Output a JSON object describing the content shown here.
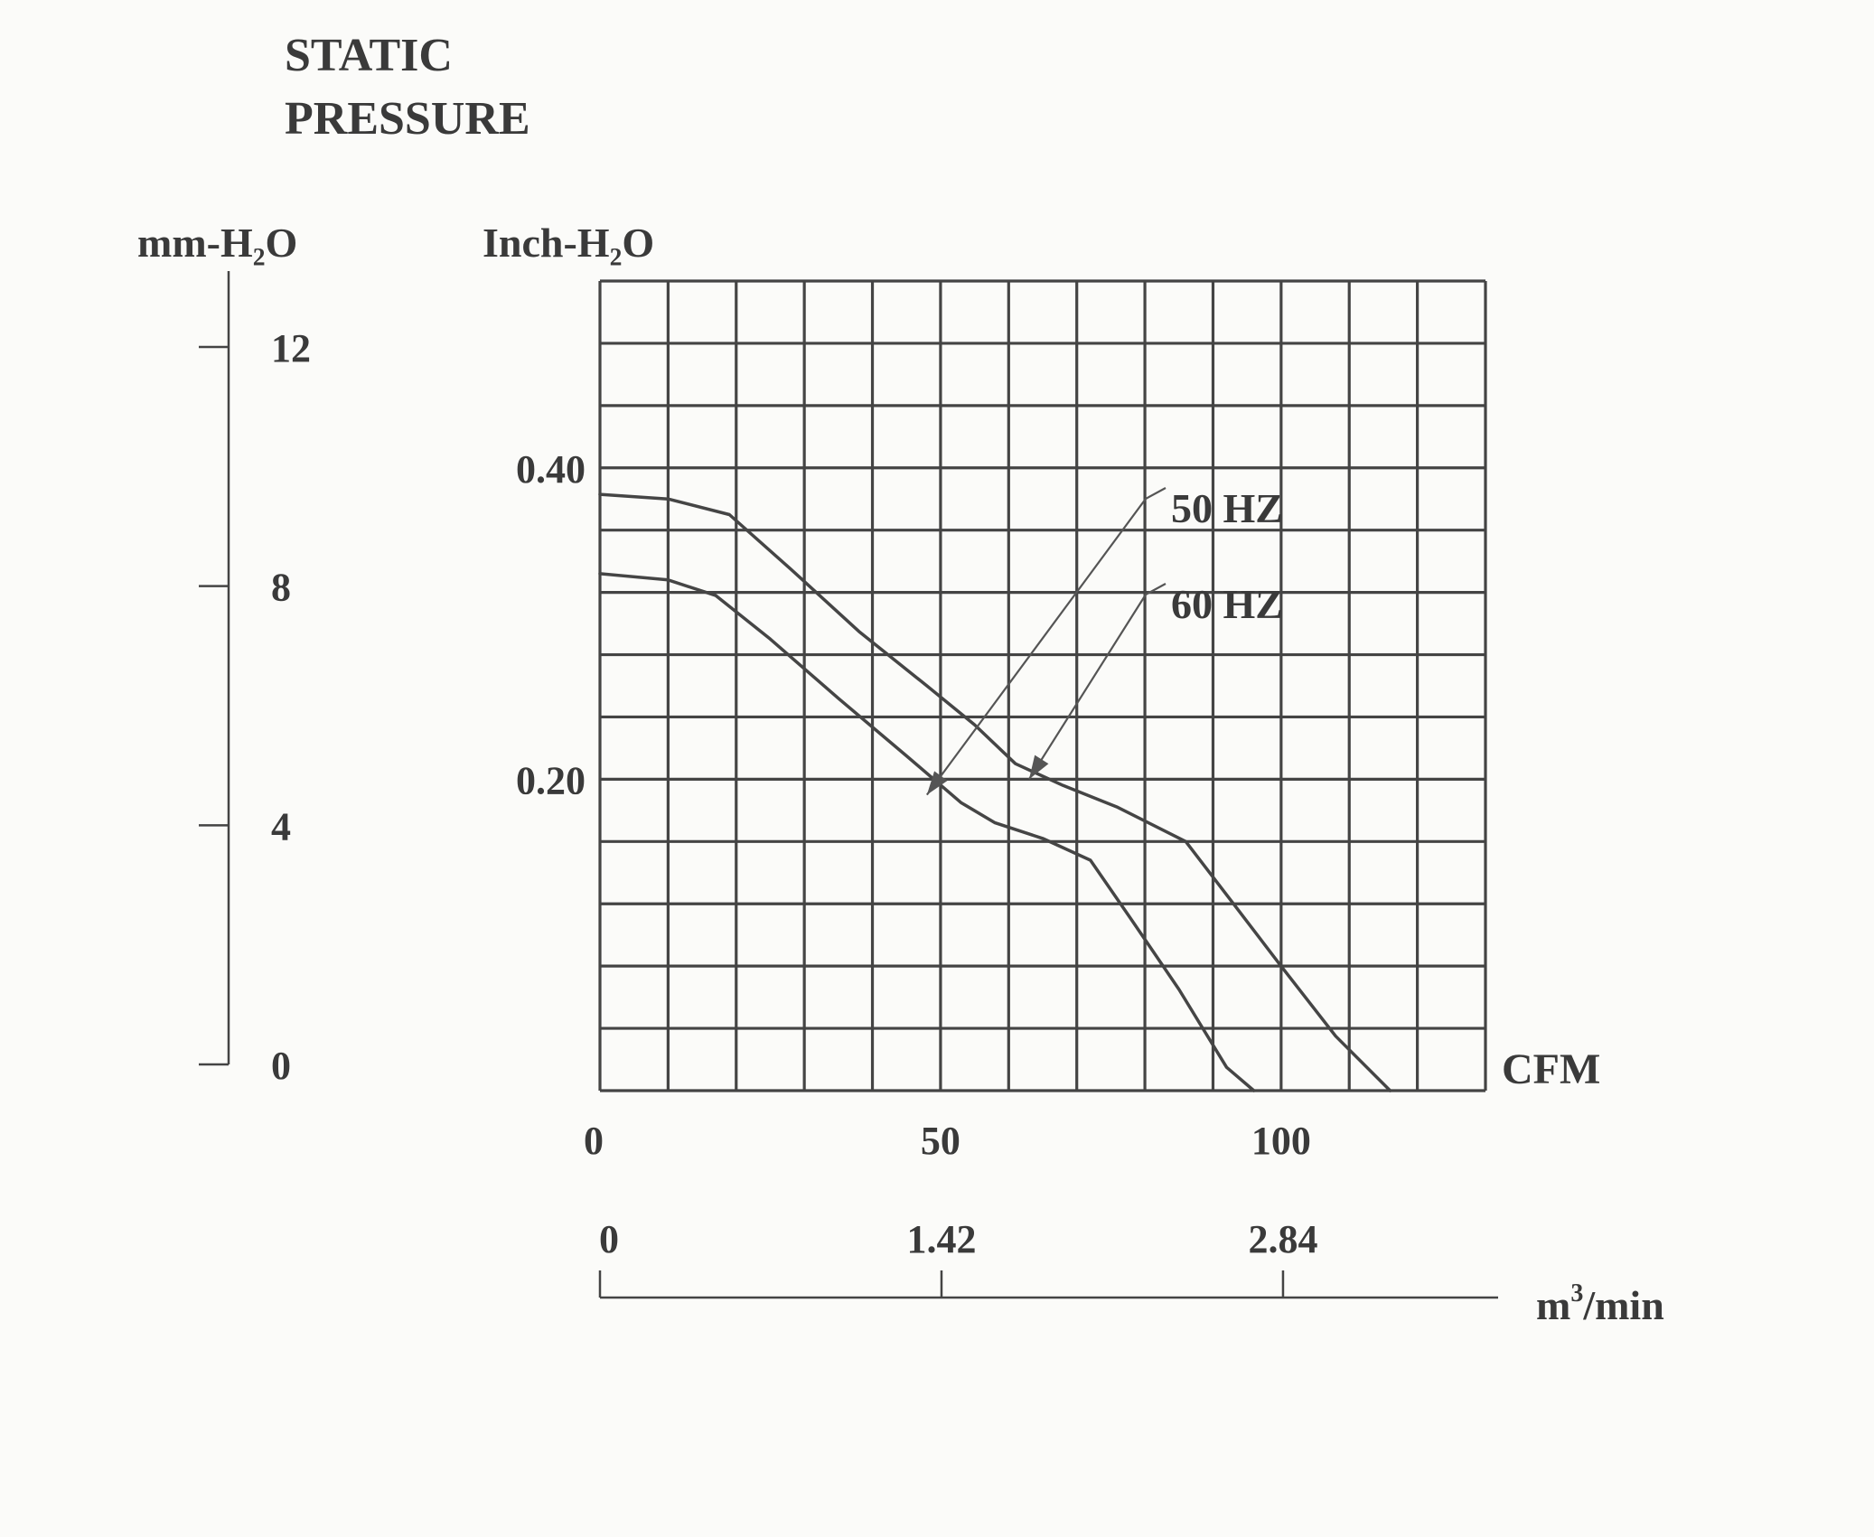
{
  "chart_data": {
    "type": "line",
    "title": "STATIC\nPRESSURE",
    "title_lines": [
      "STATIC",
      "PRESSURE"
    ],
    "x_primary": {
      "label": "CFM",
      "ticks": [
        0,
        50,
        100
      ],
      "tick_labels": [
        "0",
        "50",
        "100"
      ],
      "range": [
        0,
        130
      ],
      "grid_step": 10
    },
    "x_secondary": {
      "label_base": "m",
      "label_sup": "3",
      "label_rest": "/min",
      "ticks": [
        0,
        1.42,
        2.84
      ],
      "tick_labels": [
        "0",
        "1.42",
        "2.84"
      ]
    },
    "y_primary": {
      "label": "Inch-H₂O",
      "ticks": [
        0.2,
        0.4
      ],
      "tick_labels": [
        "0.20",
        "0.40"
      ],
      "range": [
        0,
        0.52
      ],
      "grid_step": 0.04
    },
    "y_secondary": {
      "label": "mm-H₂O",
      "ticks": [
        0,
        4,
        8,
        12
      ],
      "tick_labels": [
        "0",
        "4",
        "8",
        "12"
      ]
    },
    "grid": true,
    "series": [
      {
        "name": "50 HZ",
        "label": "50 HZ",
        "points": [
          [
            0,
            0.332
          ],
          [
            10,
            0.328
          ],
          [
            17,
            0.318
          ],
          [
            25,
            0.29
          ],
          [
            35,
            0.252
          ],
          [
            45,
            0.215
          ],
          [
            53,
            0.185
          ],
          [
            58,
            0.172
          ],
          [
            65,
            0.162
          ],
          [
            72,
            0.148
          ],
          [
            78,
            0.11
          ],
          [
            85,
            0.065
          ],
          [
            92,
            0.015
          ],
          [
            96,
            0
          ]
        ]
      },
      {
        "name": "60 HZ",
        "label": "60 HZ",
        "points": [
          [
            0,
            0.383
          ],
          [
            10,
            0.38
          ],
          [
            19,
            0.37
          ],
          [
            28,
            0.335
          ],
          [
            38,
            0.295
          ],
          [
            48,
            0.26
          ],
          [
            55,
            0.235
          ],
          [
            61,
            0.21
          ],
          [
            68,
            0.196
          ],
          [
            76,
            0.182
          ],
          [
            86,
            0.16
          ],
          [
            93,
            0.12
          ],
          [
            100,
            0.08
          ],
          [
            108,
            0.035
          ],
          [
            116,
            0
          ]
        ]
      }
    ],
    "annotations": [
      {
        "text": "50 HZ",
        "series": "50 HZ",
        "arrow_target": [
          48,
          0.19
        ]
      },
      {
        "text": "60 HZ",
        "series": "60 HZ",
        "arrow_target": [
          63,
          0.2
        ]
      }
    ]
  }
}
